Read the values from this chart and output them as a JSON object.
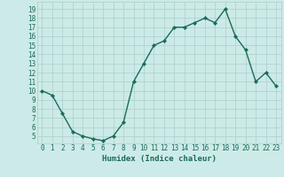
{
  "x": [
    0,
    1,
    2,
    3,
    4,
    5,
    6,
    7,
    8,
    9,
    10,
    11,
    12,
    13,
    14,
    15,
    16,
    17,
    18,
    19,
    20,
    21,
    22,
    23
  ],
  "y": [
    10,
    9.5,
    7.5,
    5.5,
    5.0,
    4.7,
    4.5,
    5.0,
    6.5,
    11.0,
    13.0,
    15.0,
    15.5,
    17.0,
    17.0,
    17.5,
    18.0,
    17.5,
    19.0,
    16.0,
    14.5,
    11.0,
    12.0,
    10.5
  ],
  "xlabel": "Humidex (Indice chaleur)",
  "line_color": "#1a6b5a",
  "marker_color": "#1a6b5a",
  "bg_color": "#cceae7",
  "grid_color": "#aacfcc",
  "axis_label_color": "#1a6b5a",
  "tick_label_color": "#1a6b5a",
  "xlim": [
    -0.5,
    23.5
  ],
  "ylim": [
    4.2,
    19.8
  ],
  "yticks": [
    5,
    6,
    7,
    8,
    9,
    10,
    11,
    12,
    13,
    14,
    15,
    16,
    17,
    18,
    19
  ],
  "xticks": [
    0,
    1,
    2,
    3,
    4,
    5,
    6,
    7,
    8,
    9,
    10,
    11,
    12,
    13,
    14,
    15,
    16,
    17,
    18,
    19,
    20,
    21,
    22,
    23
  ],
  "xtick_labels": [
    "0",
    "1",
    "2",
    "3",
    "4",
    "5",
    "6",
    "7",
    "8",
    "9",
    "10",
    "11",
    "12",
    "13",
    "14",
    "15",
    "16",
    "17",
    "18",
    "19",
    "20",
    "21",
    "22",
    "23"
  ],
  "ytick_labels": [
    "5",
    "6",
    "7",
    "8",
    "9",
    "10",
    "11",
    "12",
    "13",
    "14",
    "15",
    "16",
    "17",
    "18",
    "19"
  ],
  "font_size": 5.5,
  "xlabel_font_size": 6.5,
  "line_width": 1.0,
  "marker_size": 2.2
}
